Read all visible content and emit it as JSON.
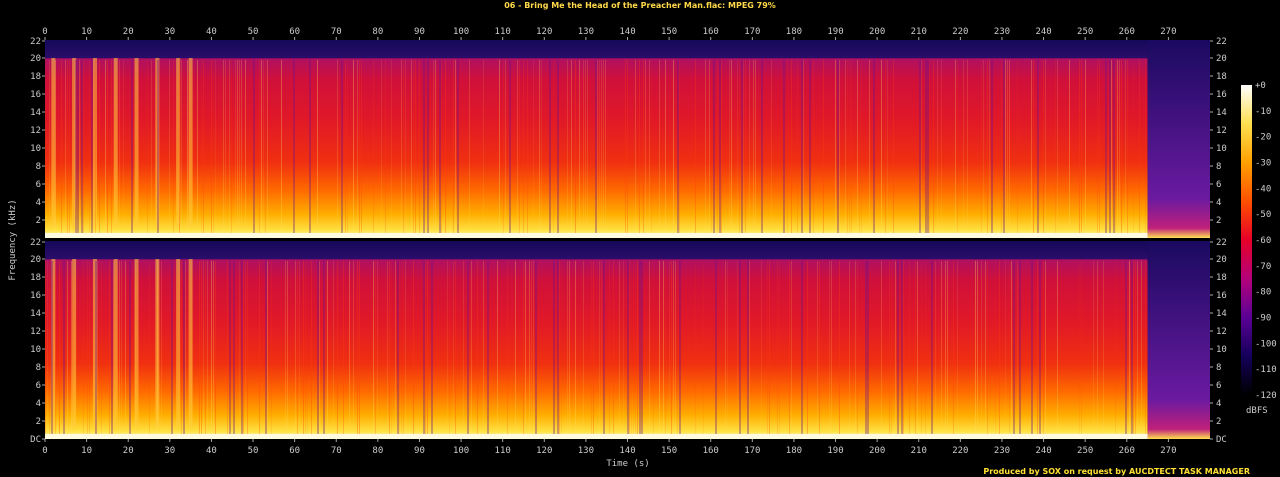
{
  "title": "06 - Bring Me the Head of the Preacher Man.flac: MPEG 79%",
  "credit": "Produced by SOX on request by AUCDTECT TASK MANAGER",
  "chart_data": {
    "type": "heatmap",
    "title": "06 - Bring Me the Head of the Preacher Man.flac: MPEG 79%",
    "xlabel": "Time (s)",
    "ylabel": "Frequency (kHz)",
    "xlim": [
      0,
      280
    ],
    "ylim": [
      0,
      22
    ],
    "x_ticks": [
      "0",
      "10",
      "20",
      "30",
      "40",
      "50",
      "60",
      "70",
      "80",
      "90",
      "100",
      "110",
      "120",
      "130",
      "140",
      "150",
      "160",
      "170",
      "180",
      "190",
      "200",
      "210",
      "220",
      "230",
      "240",
      "250",
      "260",
      "270"
    ],
    "channels": [
      {
        "y_ticks": [
          "22",
          "20",
          "18",
          "16",
          "14",
          "12",
          "10",
          "8",
          "6",
          "4",
          "2"
        ]
      },
      {
        "y_ticks": [
          "22",
          "20",
          "18",
          "16",
          "14",
          "12",
          "10",
          "8",
          "6",
          "4",
          "2",
          "DC"
        ]
      }
    ],
    "lowpass_cutoff_khz": 20,
    "audio_end_s": 265,
    "intro_pulses_s": [
      2,
      7,
      12,
      17,
      22,
      27,
      32,
      35
    ],
    "colorbar": {
      "label": "dBFS",
      "ticks": [
        "+0",
        "-10",
        "-20",
        "-30",
        "-40",
        "-50",
        "-60",
        "-70",
        "-80",
        "-90",
        "-100",
        "-110",
        "-120"
      ],
      "range": [
        -120,
        0
      ],
      "colors": [
        "#000000",
        "#14005a",
        "#5a0096",
        "#b4007a",
        "#e60028",
        "#ff5000",
        "#ffa000",
        "#ffe050",
        "#ffffff"
      ]
    }
  }
}
